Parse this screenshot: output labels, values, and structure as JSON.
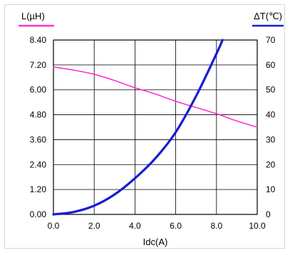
{
  "chart_data": {
    "type": "line",
    "xlabel": "Idc(A)",
    "ylabel_left": "L(µH)",
    "ylabel_right": "ΔT(℃)",
    "xlim": [
      0,
      10
    ],
    "ylim_left": [
      0,
      8.4
    ],
    "ylim_right": [
      0,
      70
    ],
    "grid": true,
    "x_ticks": [
      "0.0",
      "2.0",
      "4.0",
      "6.0",
      "8.0",
      "10.0"
    ],
    "y_left_ticks": [
      "0.00",
      "1.20",
      "2.40",
      "3.60",
      "4.80",
      "6.00",
      "7.20",
      "8.40"
    ],
    "y_right_ticks": [
      "0",
      "10",
      "20",
      "30",
      "40",
      "50",
      "60",
      "70"
    ],
    "series": [
      {
        "axis": "left",
        "color": "#ff33cc",
        "x": [
          0,
          1,
          2,
          3,
          4,
          5,
          6,
          7,
          8,
          9,
          10
        ],
        "y": [
          7.1,
          6.95,
          6.75,
          6.45,
          6.1,
          5.8,
          5.45,
          5.15,
          4.85,
          4.5,
          4.2
        ]
      },
      {
        "axis": "right",
        "color": "#1a1ad6",
        "x": [
          0,
          1,
          2,
          3,
          4,
          5,
          6,
          7,
          8,
          8.3
        ],
        "y": [
          0,
          1,
          3.5,
          8,
          14.5,
          22.5,
          33,
          47.5,
          64.5,
          70
        ]
      }
    ]
  }
}
